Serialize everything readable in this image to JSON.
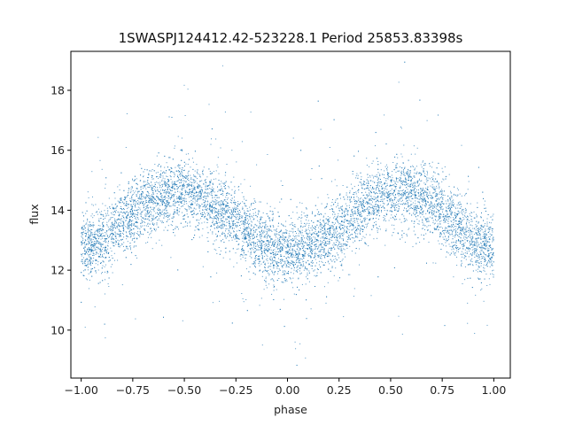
{
  "chart_data": {
    "type": "scatter",
    "title": "1SWASPJ124412.42-523228.1 Period 25853.83398s",
    "xlabel": "phase",
    "ylabel": "flux",
    "xlim": [
      -1.05,
      1.08
    ],
    "ylim": [
      8.4,
      19.3
    ],
    "x_ticks": [
      -1.0,
      -0.75,
      -0.5,
      -0.25,
      0.0,
      0.25,
      0.5,
      0.75,
      1.0
    ],
    "x_tick_labels": [
      "−1.00",
      "−0.75",
      "−0.50",
      "−0.25",
      "0.00",
      "0.25",
      "0.50",
      "0.75",
      "1.00"
    ],
    "y_ticks": [
      10,
      12,
      14,
      16,
      18
    ],
    "y_tick_labels": [
      "10",
      "12",
      "14",
      "16",
      "18"
    ],
    "grid": false,
    "color": "#1f77b4",
    "series": [
      {
        "x": [
          -1.0,
          -0.9,
          -0.8,
          -0.7,
          -0.6,
          -0.5,
          -0.4,
          -0.3,
          -0.2,
          -0.1,
          0.0,
          0.1,
          0.2,
          0.3,
          0.4,
          0.5,
          0.6,
          0.7,
          0.8,
          0.9,
          1.0
        ],
        "values": [
          12.75,
          13.0,
          13.6,
          14.2,
          14.5,
          14.6,
          14.35,
          13.9,
          13.3,
          12.8,
          12.5,
          12.75,
          13.1,
          13.7,
          14.3,
          14.5,
          14.5,
          14.2,
          13.6,
          13.0,
          12.75
        ]
      }
    ]
  }
}
